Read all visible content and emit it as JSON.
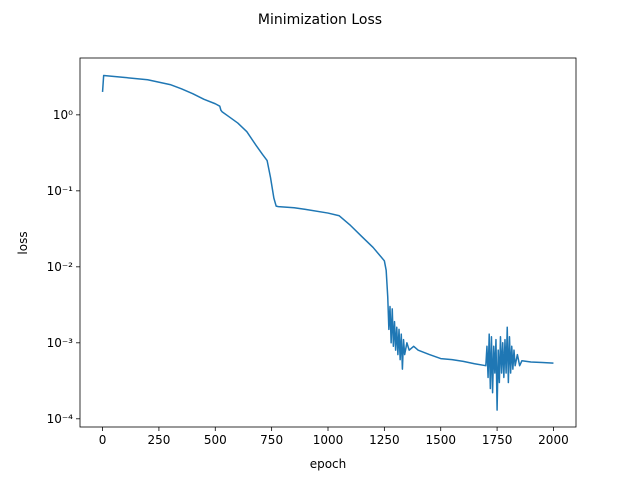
{
  "chart_data": {
    "type": "line",
    "title": "Minimization Loss",
    "x_label": "epoch",
    "y_label": "loss",
    "y_log": true,
    "grid": false,
    "xlim": [
      -100,
      2100
    ],
    "xticks": [
      0,
      250,
      500,
      750,
      1000,
      1250,
      1500,
      1750,
      2000
    ],
    "ylim": [
      7.8e-05,
      5.6
    ],
    "yticks": [
      {
        "value": 0.0001,
        "label": "10⁻⁴"
      },
      {
        "value": 0.001,
        "label": "10⁻³"
      },
      {
        "value": 0.01,
        "label": "10⁻²"
      },
      {
        "value": 0.1,
        "label": "10⁻¹"
      },
      {
        "value": 1,
        "label": "10⁰"
      }
    ],
    "x": [
      0,
      5,
      100,
      200,
      300,
      350,
      400,
      450,
      500,
      520,
      525,
      530,
      560,
      600,
      640,
      680,
      710,
      730,
      745,
      760,
      770,
      780,
      850,
      900,
      1000,
      1050,
      1100,
      1150,
      1200,
      1250,
      1258,
      1265,
      1270,
      1275,
      1280,
      1285,
      1290,
      1295,
      1300,
      1305,
      1310,
      1315,
      1320,
      1325,
      1330,
      1335,
      1340,
      1350,
      1360,
      1380,
      1400,
      1450,
      1500,
      1550,
      1600,
      1650,
      1700,
      1705,
      1710,
      1715,
      1720,
      1725,
      1730,
      1735,
      1740,
      1745,
      1750,
      1755,
      1760,
      1765,
      1770,
      1775,
      1780,
      1785,
      1790,
      1795,
      1800,
      1805,
      1810,
      1815,
      1820,
      1825,
      1830,
      1840,
      1850,
      1860,
      1900,
      1950,
      2000
    ],
    "series": [
      {
        "color": "#1f77b4",
        "values": [
          2.0,
          3.3,
          3.1,
          2.9,
          2.5,
          2.2,
          1.9,
          1.6,
          1.4,
          1.3,
          1.15,
          1.1,
          0.95,
          0.78,
          0.6,
          0.4,
          0.3,
          0.25,
          0.15,
          0.08,
          0.063,
          0.062,
          0.06,
          0.057,
          0.051,
          0.047,
          0.035,
          0.025,
          0.018,
          0.012,
          0.009,
          0.004,
          0.0015,
          0.003,
          0.001,
          0.0028,
          0.0009,
          0.0019,
          0.0008,
          0.0016,
          0.0007,
          0.0015,
          0.0006,
          0.0013,
          0.00045,
          0.0011,
          0.0007,
          0.001,
          0.0008,
          0.0009,
          0.0008,
          0.0007,
          0.00062,
          0.0006,
          0.00057,
          0.00053,
          0.0005,
          0.0009,
          0.00035,
          0.0013,
          0.00025,
          0.0012,
          0.00022,
          0.0009,
          0.0004,
          0.0011,
          0.00013,
          0.0008,
          0.0003,
          0.0012,
          0.0004,
          0.001,
          0.00035,
          0.0011,
          0.0004,
          0.0016,
          0.0003,
          0.0012,
          0.0004,
          0.0009,
          0.00045,
          0.0008,
          0.0005,
          0.0007,
          0.0005,
          0.00058,
          0.00056,
          0.00055,
          0.00054
        ]
      }
    ]
  }
}
